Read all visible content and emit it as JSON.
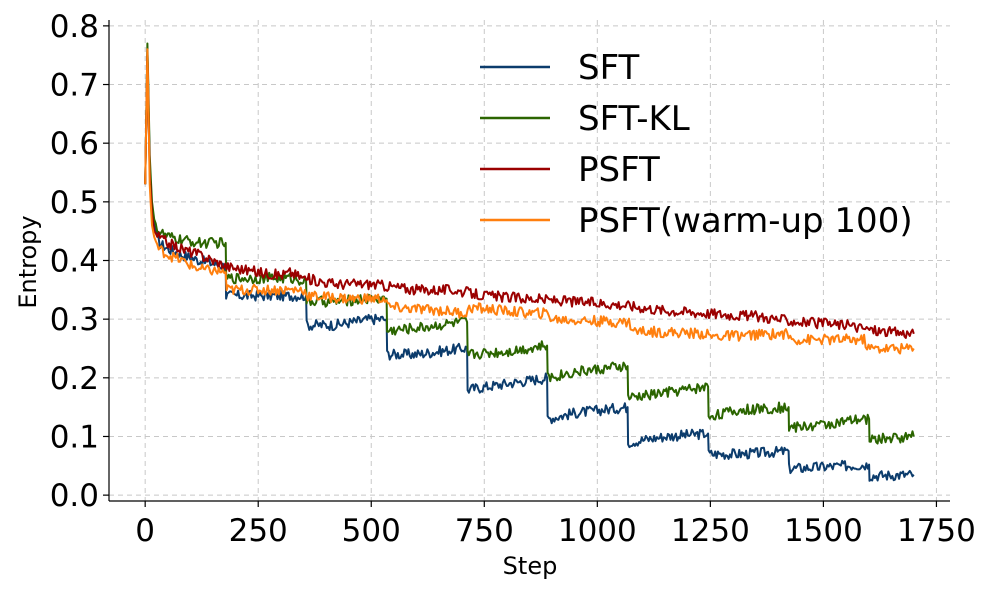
{
  "chart_data": {
    "type": "line",
    "xlabel": "Step",
    "ylabel": "Entropy",
    "xlim": [
      -80,
      1780
    ],
    "ylim": [
      -0.01,
      0.81
    ],
    "xticks": [
      0,
      250,
      500,
      750,
      1000,
      1250,
      1500,
      1750
    ],
    "yticks": [
      0.0,
      0.1,
      0.2,
      0.3,
      0.4,
      0.5,
      0.6,
      0.7,
      0.8
    ],
    "xtick_labels": [
      "0",
      "250",
      "500",
      "750",
      "1000",
      "1250",
      "1500",
      "1750"
    ],
    "ytick_labels": [
      "0.0",
      "0.1",
      "0.2",
      "0.3",
      "0.4",
      "0.5",
      "0.6",
      "0.7",
      "0.8"
    ],
    "grid": true,
    "legend_position": "top-right",
    "series": [
      {
        "name": "SFT",
        "color": "#0c3c6c",
        "x": [
          0,
          5,
          10,
          15,
          20,
          30,
          50,
          80,
          120,
          178,
          179,
          250,
          320,
          356,
          357,
          420,
          500,
          534,
          535,
          600,
          700,
          712,
          713,
          800,
          889,
          890,
          950,
          1067,
          1068,
          1150,
          1245,
          1246,
          1320,
          1423,
          1424,
          1500,
          1601,
          1602,
          1700
        ],
        "y": [
          0.53,
          0.76,
          0.56,
          0.49,
          0.46,
          0.43,
          0.42,
          0.41,
          0.4,
          0.39,
          0.34,
          0.34,
          0.34,
          0.34,
          0.29,
          0.29,
          0.3,
          0.3,
          0.24,
          0.24,
          0.25,
          0.25,
          0.18,
          0.19,
          0.2,
          0.13,
          0.14,
          0.15,
          0.09,
          0.1,
          0.105,
          0.07,
          0.07,
          0.075,
          0.045,
          0.048,
          0.052,
          0.033,
          0.035
        ]
      },
      {
        "name": "SFT-KL",
        "color": "#2b6500",
        "x": [
          0,
          5,
          10,
          15,
          20,
          30,
          50,
          80,
          120,
          178,
          179,
          250,
          320,
          356,
          357,
          420,
          500,
          534,
          535,
          600,
          700,
          712,
          713,
          800,
          889,
          890,
          950,
          1067,
          1068,
          1150,
          1245,
          1246,
          1320,
          1423,
          1424,
          1500,
          1601,
          1602,
          1700
        ],
        "y": [
          0.53,
          0.77,
          0.58,
          0.5,
          0.47,
          0.45,
          0.44,
          0.435,
          0.43,
          0.43,
          0.37,
          0.37,
          0.37,
          0.365,
          0.33,
          0.33,
          0.335,
          0.335,
          0.28,
          0.285,
          0.295,
          0.295,
          0.24,
          0.245,
          0.255,
          0.2,
          0.21,
          0.22,
          0.165,
          0.175,
          0.185,
          0.135,
          0.145,
          0.15,
          0.115,
          0.12,
          0.13,
          0.095,
          0.1
        ]
      },
      {
        "name": "PSFT",
        "color": "#9b0000",
        "x": [
          0,
          5,
          10,
          15,
          20,
          30,
          50,
          80,
          120,
          180,
          250,
          300,
          320,
          350,
          420,
          500,
          550,
          600,
          680,
          750,
          850,
          950,
          1050,
          1150,
          1250,
          1350,
          1450,
          1550,
          1620,
          1700
        ],
        "y": [
          0.53,
          0.75,
          0.55,
          0.48,
          0.45,
          0.44,
          0.43,
          0.42,
          0.41,
          0.39,
          0.38,
          0.375,
          0.38,
          0.37,
          0.36,
          0.36,
          0.355,
          0.35,
          0.35,
          0.34,
          0.335,
          0.33,
          0.325,
          0.315,
          0.31,
          0.305,
          0.295,
          0.29,
          0.28,
          0.275
        ]
      },
      {
        "name": "PSFT(warm-up 100)",
        "color": "#ff7f0e",
        "x": [
          0,
          5,
          10,
          15,
          20,
          30,
          50,
          80,
          120,
          178,
          180,
          250,
          350,
          360,
          450,
          530,
          540,
          650,
          710,
          720,
          850,
          890,
          900,
          1050,
          1070,
          1080,
          1240,
          1250,
          1400,
          1420,
          1430,
          1590,
          1600,
          1700
        ],
        "y": [
          0.53,
          0.76,
          0.53,
          0.46,
          0.44,
          0.42,
          0.41,
          0.4,
          0.385,
          0.38,
          0.35,
          0.35,
          0.35,
          0.34,
          0.335,
          0.335,
          0.32,
          0.315,
          0.31,
          0.32,
          0.31,
          0.31,
          0.3,
          0.295,
          0.295,
          0.28,
          0.275,
          0.27,
          0.275,
          0.275,
          0.265,
          0.265,
          0.25,
          0.25
        ]
      }
    ]
  }
}
